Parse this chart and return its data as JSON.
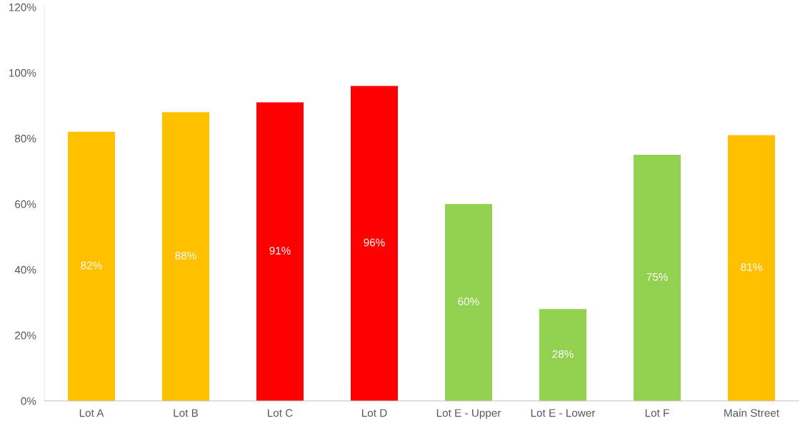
{
  "chart_data": {
    "type": "bar",
    "categories": [
      "Lot A",
      "Lot B",
      "Lot C",
      "Lot D",
      "Lot E - Upper",
      "Lot E - Lower",
      "Lot F",
      "Main Street"
    ],
    "values": [
      82,
      88,
      91,
      96,
      60,
      28,
      75,
      81
    ],
    "value_labels": [
      "82%",
      "88%",
      "91%",
      "96%",
      "60%",
      "28%",
      "75%",
      "81%"
    ],
    "colors": [
      "#ffc000",
      "#ffc000",
      "#ff0000",
      "#ff0000",
      "#92d050",
      "#92d050",
      "#92d050",
      "#ffc000"
    ],
    "ylim": [
      0,
      120
    ],
    "yticks": [
      {
        "value": 0,
        "label": "0%"
      },
      {
        "value": 20,
        "label": "20%"
      },
      {
        "value": 40,
        "label": "40%"
      },
      {
        "value": 60,
        "label": "60%"
      },
      {
        "value": 80,
        "label": "80%"
      },
      {
        "value": 100,
        "label": "100%"
      },
      {
        "value": 120,
        "label": "120%"
      }
    ],
    "grid": false
  }
}
